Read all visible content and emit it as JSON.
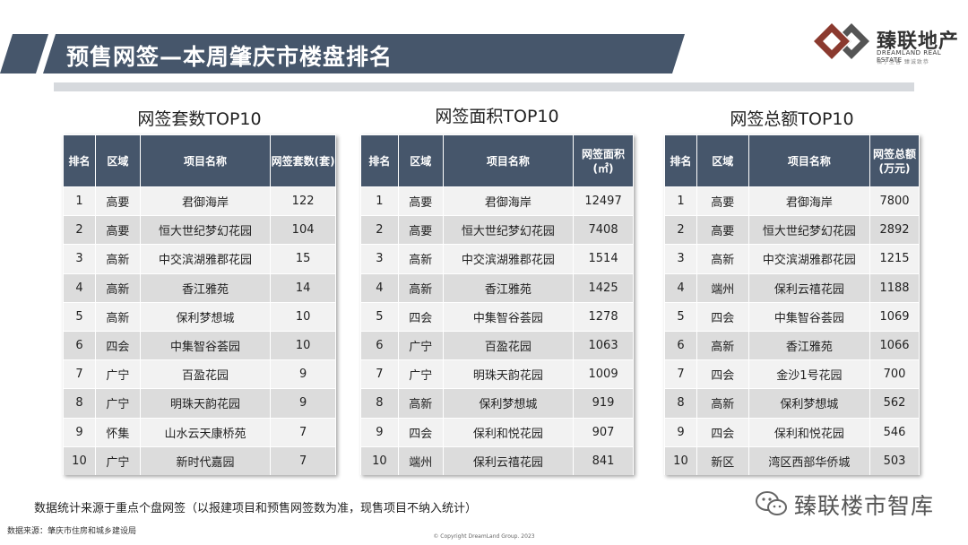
{
  "header": {
    "title": "预售网签—本周肇庆市楼盘排名"
  },
  "brand": {
    "name": "臻联地产",
    "en": "DREAMLAND REAL ESTATE",
    "slogan": "格于至善 臻诚致恭"
  },
  "tables": [
    {
      "title": "网签套数TOP10",
      "headers": [
        "排名",
        "区域",
        "项目名称",
        "网签套数(套)"
      ],
      "rows": [
        [
          "1",
          "高要",
          "君御海岸",
          "122"
        ],
        [
          "2",
          "高要",
          "恒大世纪梦幻花园",
          "104"
        ],
        [
          "3",
          "高新",
          "中交滨湖雅郡花园",
          "15"
        ],
        [
          "4",
          "高新",
          "香江雅苑",
          "14"
        ],
        [
          "5",
          "高新",
          "保利梦想城",
          "10"
        ],
        [
          "6",
          "四会",
          "中集智谷荟园",
          "10"
        ],
        [
          "7",
          "广宁",
          "百盈花园",
          "9"
        ],
        [
          "8",
          "广宁",
          "明珠天韵花园",
          "9"
        ],
        [
          "9",
          "怀集",
          "山水云天康桥苑",
          "7"
        ],
        [
          "10",
          "广宁",
          "新时代嘉园",
          "7"
        ]
      ]
    },
    {
      "title": "网签面积TOP10",
      "headers": [
        "排名",
        "区域",
        "项目名称",
        "网签面积(㎡)"
      ],
      "rows": [
        [
          "1",
          "高要",
          "君御海岸",
          "12497"
        ],
        [
          "2",
          "高要",
          "恒大世纪梦幻花园",
          "7408"
        ],
        [
          "3",
          "高新",
          "中交滨湖雅郡花园",
          "1514"
        ],
        [
          "4",
          "高新",
          "香江雅苑",
          "1425"
        ],
        [
          "5",
          "四会",
          "中集智谷荟园",
          "1278"
        ],
        [
          "6",
          "广宁",
          "百盈花园",
          "1063"
        ],
        [
          "7",
          "广宁",
          "明珠天韵花园",
          "1009"
        ],
        [
          "8",
          "高新",
          "保利梦想城",
          "919"
        ],
        [
          "9",
          "四会",
          "保利和悦花园",
          "907"
        ],
        [
          "10",
          "端州",
          "保利云禧花园",
          "841"
        ]
      ]
    },
    {
      "title": "网签总额TOP10",
      "headers": [
        "排名",
        "区域",
        "项目名称",
        "网签总额(万元)"
      ],
      "rows": [
        [
          "1",
          "高要",
          "君御海岸",
          "7800"
        ],
        [
          "2",
          "高要",
          "恒大世纪梦幻花园",
          "2892"
        ],
        [
          "3",
          "高新",
          "中交滨湖雅郡花园",
          "1215"
        ],
        [
          "4",
          "端州",
          "保利云禧花园",
          "1188"
        ],
        [
          "5",
          "四会",
          "中集智谷荟园",
          "1069"
        ],
        [
          "6",
          "高新",
          "香江雅苑",
          "1066"
        ],
        [
          "7",
          "四会",
          "金沙1号花园",
          "700"
        ],
        [
          "8",
          "高新",
          "保利梦想城",
          "562"
        ],
        [
          "9",
          "四会",
          "保利和悦花园",
          "546"
        ],
        [
          "10",
          "新区",
          "湾区西部华侨城",
          "503"
        ]
      ]
    }
  ],
  "footer": {
    "note": "数据统计来源于重点个盘网签（以报建项目和预售网签数为准，现售项目不纳入统计）",
    "source": "数据来源：肇庆市住房和城乡建设局",
    "copyright": "© Copyright  DreamLand Group. 2023",
    "wechat": "臻联楼市智库"
  },
  "colors": {
    "header_bg": "#46566b",
    "row_light": "#f2f2f2",
    "row_dark": "#dcdcdc",
    "brand": "#8b3a2f"
  }
}
